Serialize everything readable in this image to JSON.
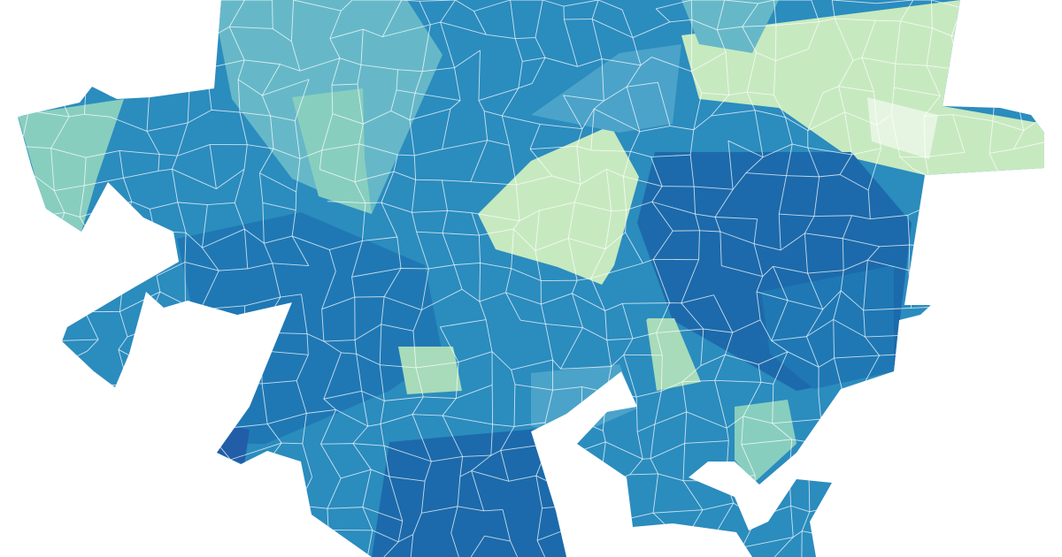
{
  "map": {
    "type": "choropleth",
    "background": "#ffffff",
    "boundary_color": "#ffffff",
    "palette": [
      "#e6f5e1",
      "#c7e9c0",
      "#a8dbb9",
      "#88cebf",
      "#66b8c8",
      "#4ba3c9",
      "#2b8cbe",
      "#1f78b4",
      "#1c6aab",
      "#225ea8"
    ],
    "base_level": 6,
    "region_levels": [
      1,
      1,
      4,
      3,
      3,
      7,
      8,
      2,
      3,
      2,
      5,
      8,
      9,
      0,
      5,
      4,
      6,
      7
    ]
  }
}
